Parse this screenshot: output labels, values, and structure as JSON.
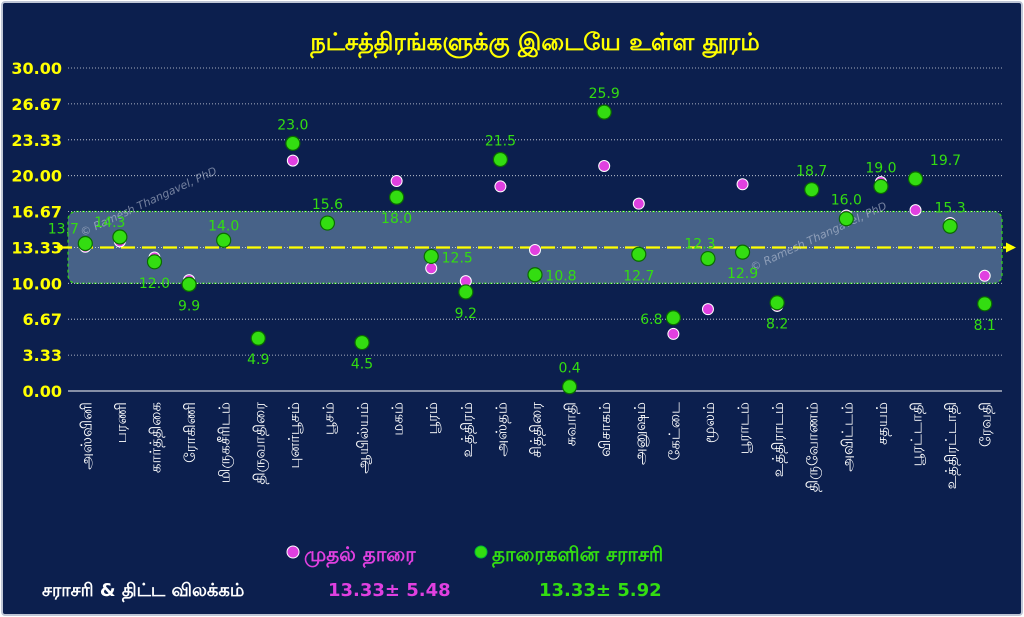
{
  "chart_data": {
    "type": "scatter",
    "title": "நட்சத்திரங்களுக்கு இடையே உள்ள தூரம்",
    "categories": [
      "அஸ்வினி",
      "பரணி",
      "கார்த்திகை",
      "ரோகிணி",
      "மிருகசீரிடம்",
      "திருவாதிரை",
      "புனர்பூசம்",
      "பூசம்",
      "ஆயில்யம்",
      "மகம்",
      "பூரம்",
      "உத்திரம்",
      "அஸ்தம்",
      "சித்திரை",
      "சுவாதி",
      "விசாகம்",
      "அனுஷம்",
      "கேட்டை",
      "மூலம்",
      "பூராடம்",
      "உத்திராடம்",
      "திருவோணம்",
      "அவிட்டம்",
      "சதயம்",
      "பூரட்டாதி",
      "உத்திரட்டாதி",
      "ரேவதி"
    ],
    "yticks": [
      "0.00",
      "3.33",
      "6.67",
      "10.00",
      "13.33",
      "16.67",
      "20.00",
      "23.33",
      "26.67",
      "30.00"
    ],
    "ylim": [
      0,
      30
    ],
    "grid": true,
    "series": [
      {
        "name": "முதல் தாரை",
        "color": "#e040e0",
        "values": [
          13.4,
          13.9,
          12.4,
          10.3,
          14.0,
          5.0,
          21.4,
          15.7,
          4.4,
          19.5,
          11.4,
          10.2,
          19.0,
          13.1,
          0.5,
          20.9,
          17.4,
          5.3,
          7.6,
          19.2,
          7.9,
          18.6,
          16.3,
          19.4,
          16.8,
          15.6,
          10.7
        ]
      },
      {
        "name": "தாரைகளின் சராசரி",
        "color": "#33dd11",
        "values": [
          13.7,
          14.3,
          12.0,
          9.9,
          14.0,
          4.9,
          23.0,
          15.6,
          4.5,
          18.0,
          12.5,
          9.2,
          21.5,
          10.8,
          0.4,
          25.9,
          12.7,
          6.8,
          12.3,
          12.9,
          8.2,
          18.7,
          16.0,
          19.0,
          19.7,
          15.3,
          8.1
        ],
        "labels": [
          "13.7",
          "14.3",
          "12.0",
          "9.9",
          "14.0",
          "4.9",
          "23.0",
          "15.6",
          "4.5",
          "18.0",
          "12.5",
          "9.2",
          "21.5",
          "10.8",
          "0.4",
          "25.9",
          "12.7",
          "6.8",
          "12.3",
          "12.9",
          "8.2",
          "18.7",
          "16.0",
          "19.0",
          "19.7",
          "15.3",
          "8.1"
        ]
      }
    ],
    "mean_line": 13.33,
    "band": [
      10.0,
      16.67
    ],
    "watermark": "© Ramesh Thangavel, PhD",
    "stats": {
      "label": "சராசரி & திட்ட விலக்கம்",
      "first": "13.33± 5.48",
      "average": "13.33± 5.92"
    }
  },
  "colors": {
    "background": "#0c1f4e",
    "title": "#ffff00",
    "axis_text": "#ffff00",
    "grid": "#ffffff",
    "mean_line": "#ffff00",
    "band_fill": "#5b7a9c"
  }
}
